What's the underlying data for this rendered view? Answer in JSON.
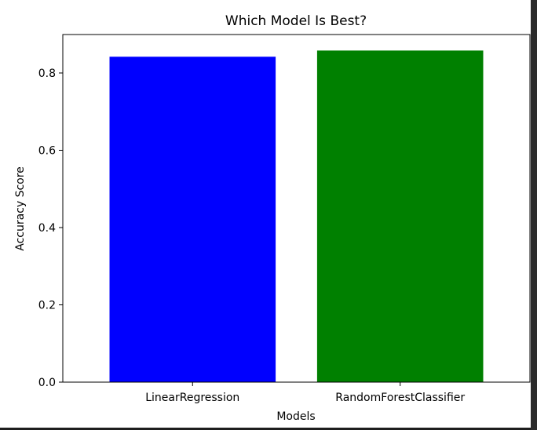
{
  "chart_data": {
    "type": "bar",
    "title": "Which Model Is Best?",
    "xlabel": "Models",
    "ylabel": "Accuracy Score",
    "categories": [
      "LinearRegression",
      "RandomForestClassifier"
    ],
    "values": [
      0.842,
      0.858
    ],
    "colors": [
      "#0000ff",
      "#008000"
    ],
    "ylim": [
      0,
      0.9
    ],
    "yticks": [
      0.0,
      0.2,
      0.4,
      0.6,
      0.8
    ],
    "ytick_labels": [
      "0.0",
      "0.2",
      "0.4",
      "0.6",
      "0.8"
    ],
    "grid": false,
    "legend": "none"
  }
}
